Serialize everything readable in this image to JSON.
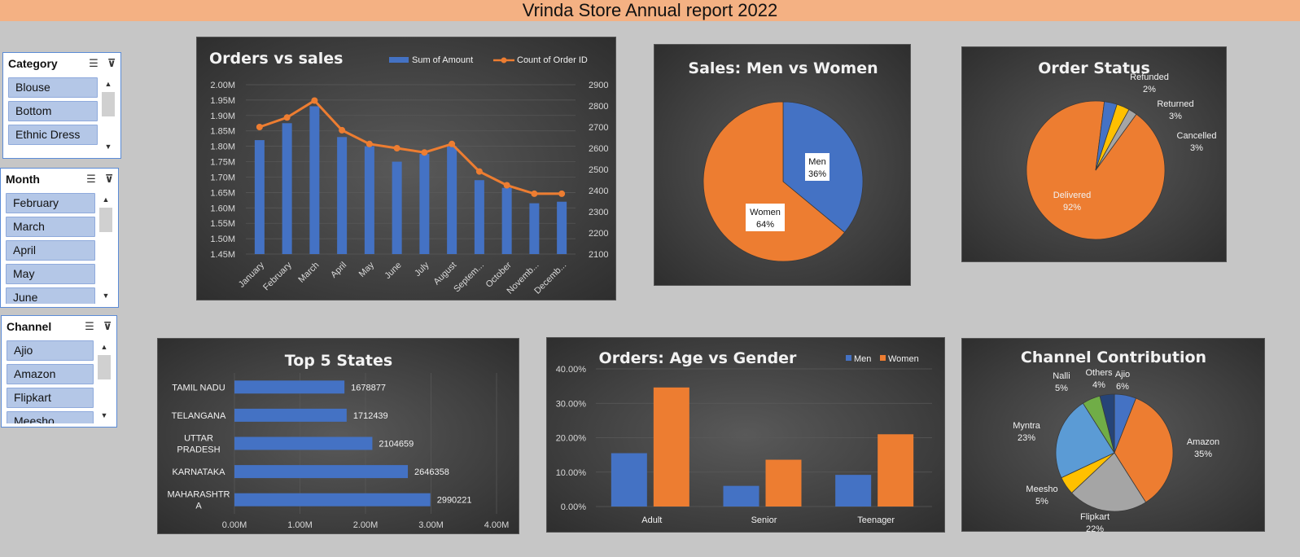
{
  "title": "Vrinda Store Annual report 2022",
  "slicers": {
    "category": {
      "label": "Category",
      "items": [
        "Blouse",
        "Bottom",
        "Ethnic Dress"
      ]
    },
    "month": {
      "label": "Month",
      "items": [
        "February",
        "March",
        "April",
        "May",
        "June"
      ]
    },
    "channel": {
      "label": "Channel",
      "items": [
        "Ajio",
        "Amazon",
        "Flipkart",
        "Meesho"
      ]
    }
  },
  "colors": {
    "blue": "#4472c4",
    "orange": "#ed7d31",
    "gray": "#a5a5a5",
    "yellow": "#ffc000",
    "lightblue": "#5b9bd5",
    "green": "#70ad47",
    "navy": "#264478"
  },
  "charts": {
    "orders_vs_sales": {
      "type": "bar+line",
      "title": "Orders vs sales",
      "legend": [
        "Sum of Amount",
        "Count of Order ID"
      ],
      "categories": [
        "January",
        "February",
        "March",
        "April",
        "May",
        "June",
        "July",
        "August",
        "Septem...",
        "October",
        "Novemb...",
        "Decemb..."
      ],
      "bar_values": [
        1.82,
        1.875,
        1.93,
        1.83,
        1.8,
        1.75,
        1.775,
        1.8,
        1.69,
        1.665,
        1.615,
        1.62
      ],
      "line_values": [
        2700,
        2745,
        2825,
        2685,
        2620,
        2600,
        2580,
        2620,
        2490,
        2425,
        2385,
        2385
      ],
      "y_left_ticks": [
        "2.00M",
        "1.95M",
        "1.90M",
        "1.85M",
        "1.80M",
        "1.75M",
        "1.70M",
        "1.65M",
        "1.60M",
        "1.55M",
        "1.50M",
        "1.45M"
      ],
      "y_right_ticks": [
        "2900",
        "2800",
        "2700",
        "2600",
        "2500",
        "2400",
        "2300",
        "2200",
        "2100"
      ],
      "ylim_left": [
        1.45,
        2.0
      ],
      "ylim_right": [
        2100,
        2900
      ]
    },
    "men_vs_women": {
      "type": "pie",
      "title": "Sales: Men vs Women",
      "labels": [
        "Men",
        "Women"
      ],
      "values": [
        36,
        64
      ],
      "pct_labels": [
        "36%",
        "64%"
      ]
    },
    "order_status": {
      "type": "pie",
      "title": "Order Status",
      "labels": [
        "Delivered",
        "Cancelled",
        "Returned",
        "Refunded"
      ],
      "values": [
        92,
        3,
        3,
        2
      ],
      "pct_labels": [
        "92%",
        "3%",
        "3%",
        "2%"
      ]
    },
    "top_states": {
      "type": "bar",
      "title": "Top 5 States",
      "categories": [
        "TAMIL NADU",
        "TELANGANA",
        "UTTAR PRADESH",
        "KARNATAKA",
        "MAHARASHTRA"
      ],
      "label_lines": [
        [
          "TAMIL NADU"
        ],
        [
          "TELANGANA"
        ],
        [
          "UTTAR",
          "PRADESH"
        ],
        [
          "KARNATAKA"
        ],
        [
          "MAHARASHTR",
          "A"
        ]
      ],
      "values": [
        1678877,
        1712439,
        2104659,
        2646358,
        2990221
      ],
      "value_labels": [
        "1678877",
        "1712439",
        "2104659",
        "2646358",
        "2990221"
      ],
      "x_ticks": [
        "0.00M",
        "1.00M",
        "2.00M",
        "3.00M",
        "4.00M"
      ],
      "xlim": [
        0,
        4000000
      ]
    },
    "age_vs_gender": {
      "type": "bar",
      "title": "Orders: Age vs Gender",
      "legend": [
        "Men",
        "Women"
      ],
      "categories": [
        "Adult",
        "Senior",
        "Teenager"
      ],
      "series": [
        {
          "name": "Men",
          "values": [
            15.5,
            6.0,
            9.2
          ]
        },
        {
          "name": "Women",
          "values": [
            34.6,
            13.6,
            21.0
          ]
        }
      ],
      "y_ticks": [
        "40.00%",
        "30.00%",
        "20.00%",
        "10.00%",
        "0.00%"
      ],
      "ylim": [
        0,
        40
      ]
    },
    "channel_contribution": {
      "type": "pie",
      "title": "Channel Contribution",
      "labels": [
        "Ajio",
        "Amazon",
        "Flipkart",
        "Meesho",
        "Myntra",
        "Nalli",
        "Others"
      ],
      "values": [
        6,
        35,
        22,
        5,
        23,
        5,
        4
      ],
      "pct_labels": [
        "6%",
        "35%",
        "22%",
        "5%",
        "23%",
        "5%",
        "4%"
      ]
    }
  }
}
